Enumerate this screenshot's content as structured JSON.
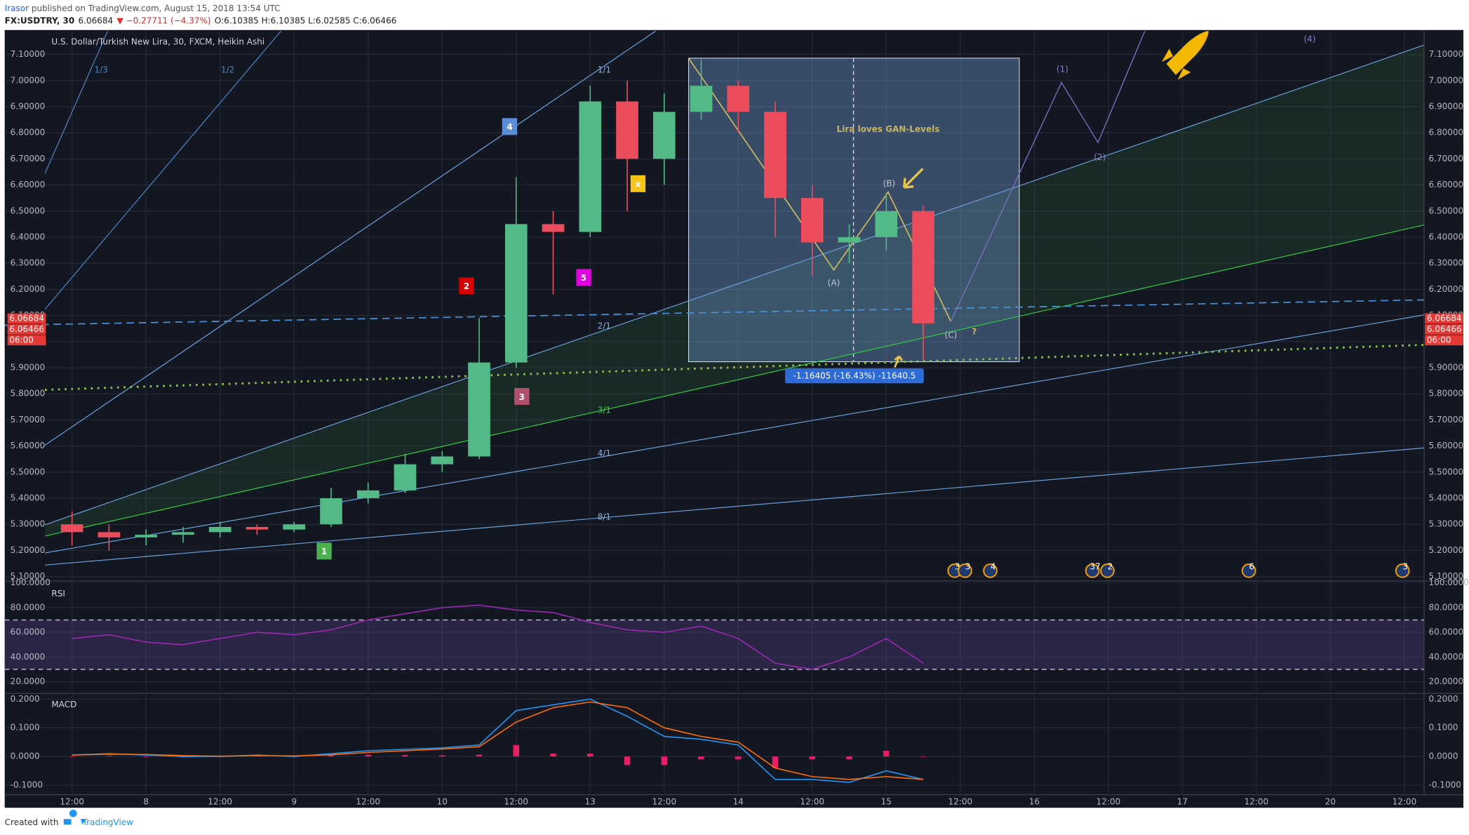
{
  "header": {
    "author": "Irasor",
    "published": " published on TradingView.com, August 15, 2018 13:54 UTC",
    "symbol": "FX:USDTRY, 30",
    "last": "6.06684",
    "change": "▼ −0.27711 (−4.37%)",
    "ohlc": "O:6.10385 H:6.10385 L:6.02585 C:6.06466"
  },
  "chart_data": [
    {
      "type": "candlestick",
      "title": "U.S. Dollar/Turkish New Lira, 30, FXCM, Heikin Ashi",
      "x": [
        0,
        1,
        2,
        3,
        4,
        5,
        6,
        7,
        8,
        9,
        10,
        11,
        12,
        13,
        14,
        15,
        16,
        17,
        18,
        19,
        20,
        21,
        22,
        23
      ],
      "open": [
        5.3,
        5.27,
        5.25,
        5.26,
        5.27,
        5.29,
        5.28,
        5.3,
        5.4,
        5.43,
        5.53,
        5.56,
        5.92,
        6.45,
        6.42,
        6.92,
        6.7,
        6.88,
        6.98,
        6.88,
        6.55,
        6.38,
        6.4,
        6.5
      ],
      "high": [
        5.35,
        5.3,
        5.28,
        5.29,
        5.31,
        5.3,
        5.31,
        5.44,
        5.46,
        5.57,
        5.58,
        6.09,
        6.63,
        6.5,
        6.98,
        7.0,
        6.95,
        7.08,
        7.0,
        6.92,
        6.6,
        6.45,
        6.57,
        6.52
      ],
      "low": [
        5.22,
        5.2,
        5.22,
        5.23,
        5.25,
        5.26,
        5.27,
        5.29,
        5.38,
        5.42,
        5.5,
        5.55,
        5.9,
        6.18,
        6.4,
        6.5,
        6.6,
        6.85,
        6.8,
        6.4,
        6.25,
        6.3,
        6.35,
        5.93
      ],
      "close": [
        5.27,
        5.25,
        5.26,
        5.27,
        5.29,
        5.28,
        5.3,
        5.4,
        5.43,
        5.53,
        5.56,
        5.92,
        6.45,
        6.42,
        6.92,
        6.7,
        6.88,
        6.98,
        6.88,
        6.55,
        6.38,
        6.4,
        6.5,
        6.07
      ],
      "up_color": "#53b987",
      "down_color": "#eb4d5c",
      "ylim": [
        5.09,
        7.19
      ],
      "yticks": [
        {
          "value": 5.1,
          "label": "5.10000"
        },
        {
          "value": 5.2,
          "label": "5.20000"
        },
        {
          "value": 5.3,
          "label": "5.30000"
        },
        {
          "value": 5.4,
          "label": "5.40000"
        },
        {
          "value": 5.5,
          "label": "5.50000"
        },
        {
          "value": 5.6,
          "label": "5.60000"
        },
        {
          "value": 5.7,
          "label": "5.70000"
        },
        {
          "value": 5.8,
          "label": "5.80000"
        },
        {
          "value": 5.9,
          "label": "5.90000"
        },
        {
          "value": 6.0,
          "label": "6.00000"
        },
        {
          "value": 6.1,
          "label": "6.10000"
        },
        {
          "value": 6.2,
          "label": "6.20000"
        },
        {
          "value": 6.3,
          "label": "6.30000"
        },
        {
          "value": 6.4,
          "label": "6.40000"
        },
        {
          "value": 6.5,
          "label": "6.50000"
        },
        {
          "value": 6.6,
          "label": "6.60000"
        },
        {
          "value": 6.7,
          "label": "6.70000"
        },
        {
          "value": 6.8,
          "label": "6.80000"
        },
        {
          "value": 6.9,
          "label": "6.90000"
        },
        {
          "value": 7.0,
          "label": "7.00000"
        },
        {
          "value": 7.1,
          "label": "7.10000"
        }
      ],
      "last_price": 6.06684,
      "close_price": 6.06466,
      "countdown": "06:00",
      "fan_labels": [
        "1/3",
        "1/2",
        "1/1",
        "2/1",
        "3/1",
        "4/1",
        "8/1"
      ],
      "wave_counts": [
        "1",
        "2",
        "3",
        "4",
        "5",
        "x"
      ],
      "annotation": "Lira loves GAN-Levels",
      "abc": [
        "(A)",
        "(B)",
        "(C)",
        "?"
      ],
      "future_waves": [
        "(1)",
        "(2)",
        "(4)"
      ],
      "measure": "-1.16405 (-16.43%) -11640.5",
      "events": [
        "3",
        "3",
        "4",
        "37",
        "2",
        "6",
        "3"
      ]
    },
    {
      "type": "line",
      "title": "RSI",
      "x": [
        0,
        1,
        2,
        3,
        4,
        5,
        6,
        7,
        8,
        9,
        10,
        11,
        12,
        13,
        14,
        15,
        16,
        17,
        18,
        19,
        20,
        21,
        22,
        23
      ],
      "values": [
        55,
        58,
        52,
        50,
        55,
        60,
        58,
        62,
        70,
        75,
        80,
        82,
        78,
        76,
        68,
        62,
        60,
        65,
        55,
        35,
        30,
        40,
        55,
        35
      ],
      "color": "#9c27b0",
      "bands": [
        30,
        70
      ],
      "ylim": [
        12,
        100
      ],
      "yticks": [
        {
          "value": 20,
          "label": "20.0000"
        },
        {
          "value": 40,
          "label": "40.0000"
        },
        {
          "value": 60,
          "label": "60.0000"
        },
        {
          "value": 80,
          "label": "80.0000"
        },
        {
          "value": 100,
          "label": "100.0000"
        }
      ]
    },
    {
      "type": "line",
      "title": "MACD",
      "x": [
        0,
        1,
        2,
        3,
        4,
        5,
        6,
        7,
        8,
        9,
        10,
        11,
        12,
        13,
        14,
        15,
        16,
        17,
        18,
        19,
        20,
        21,
        22,
        23
      ],
      "series": [
        {
          "color": "#2196f3",
          "values": [
            0.005,
            0.01,
            0.005,
            0,
            0,
            0.005,
            0,
            0.01,
            0.02,
            0.025,
            0.03,
            0.04,
            0.16,
            0.18,
            0.2,
            0.14,
            0.07,
            0.06,
            0.04,
            -0.08,
            -0.08,
            -0.09,
            -0.05,
            -0.08
          ]
        },
        {
          "color": "#ff6d00",
          "values": [
            0.005,
            0.008,
            0.007,
            0.003,
            0.001,
            0.003,
            0.002,
            0.006,
            0.014,
            0.02,
            0.026,
            0.034,
            0.12,
            0.17,
            0.19,
            0.17,
            0.1,
            0.07,
            0.05,
            -0.04,
            -0.07,
            -0.08,
            -0.07,
            -0.08
          ]
        }
      ],
      "histogram": {
        "color": "#e91e63",
        "values": [
          0,
          0.002,
          -0.002,
          -0.003,
          -0.001,
          0.002,
          -0.002,
          0.004,
          0.006,
          0.005,
          0.004,
          0.006,
          0.04,
          0.01,
          0.01,
          -0.03,
          -0.03,
          -0.01,
          -0.01,
          -0.04,
          -0.01,
          -0.01,
          0.02,
          0
        ]
      },
      "ylim": [
        -0.133,
        0.213
      ],
      "yticks": [
        {
          "value": -0.1,
          "label": "-0.1000"
        },
        {
          "value": 0,
          "label": "0.0000"
        },
        {
          "value": 0.1,
          "label": "0.1000"
        },
        {
          "value": 0.2,
          "label": "0.2000"
        }
      ],
      "xlim": [
        -1.82,
        36.53
      ],
      "xticks": [
        {
          "value": 0,
          "label": "12:00"
        },
        {
          "value": 2,
          "label": "8"
        },
        {
          "value": 4,
          "label": "12:00"
        },
        {
          "value": 6,
          "label": "9"
        },
        {
          "value": 8,
          "label": "12:00"
        },
        {
          "value": 10,
          "label": "10"
        },
        {
          "value": 12,
          "label": "12:00"
        },
        {
          "value": 14,
          "label": "13"
        },
        {
          "value": 16,
          "label": "12:00"
        },
        {
          "value": 18,
          "label": "14"
        },
        {
          "value": 20,
          "label": "12:00"
        },
        {
          "value": 22,
          "label": "15"
        },
        {
          "value": 24,
          "label": "12:00"
        },
        {
          "value": 26,
          "label": "16"
        },
        {
          "value": 28,
          "label": "12:00"
        },
        {
          "value": 30,
          "label": "17"
        },
        {
          "value": 32,
          "label": "12:00"
        },
        {
          "value": 34,
          "label": "20"
        },
        {
          "value": 36,
          "label": "12:00"
        }
      ]
    }
  ],
  "footer": {
    "created": "Created with",
    "brand": "TradingView"
  }
}
